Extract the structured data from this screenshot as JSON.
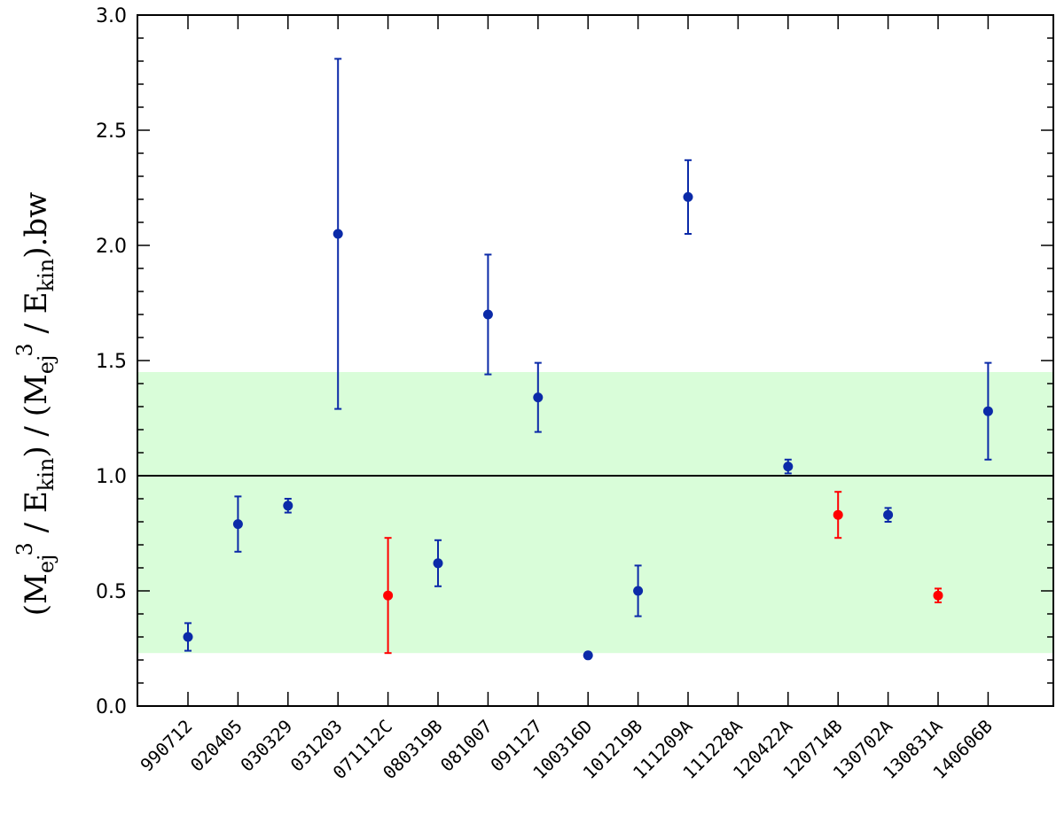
{
  "chart_data": {
    "type": "scatter",
    "title": "",
    "xlabel": "",
    "ylabel": {
      "p1": "(M",
      "s1": "ej",
      "e1": "3",
      "p2": " / E",
      "s2": "kin",
      "p3": ") / (M",
      "s3": "ej",
      "e2": "3",
      "p4": " / E",
      "s4": "kin",
      "p5": ").bw"
    },
    "ylim": [
      0,
      3
    ],
    "yticks": [
      "0.0",
      "0.5",
      "1.0",
      "1.5",
      "2.0",
      "2.5",
      "3.0"
    ],
    "categories": [
      "990712",
      "020405",
      "030329",
      "031203",
      "071112C",
      "080319B",
      "081007",
      "091127",
      "100316D",
      "101219B",
      "111209A",
      "111228A",
      "120422A",
      "120714B",
      "130702A",
      "130831A",
      "140606B"
    ],
    "reference_line": 1.0,
    "band": {
      "low": 0.23,
      "high": 1.45,
      "color": "#d9fdd9"
    },
    "colors": {
      "blue": "#0b2aa8",
      "red": "#ff0000",
      "axis": "#000000"
    },
    "series": [
      {
        "color": "blue",
        "points": [
          {
            "x": "990712",
            "y": 0.3,
            "low": 0.24,
            "high": 0.36
          },
          {
            "x": "020405",
            "y": 0.79,
            "low": 0.67,
            "high": 0.91
          },
          {
            "x": "030329",
            "y": 0.87,
            "low": 0.84,
            "high": 0.9
          },
          {
            "x": "031203",
            "y": 2.05,
            "low": 1.29,
            "high": 2.81
          },
          {
            "x": "080319B",
            "y": 0.62,
            "low": 0.52,
            "high": 0.72
          },
          {
            "x": "081007",
            "y": 1.7,
            "low": 1.44,
            "high": 1.96
          },
          {
            "x": "091127",
            "y": 1.34,
            "low": 1.19,
            "high": 1.49
          },
          {
            "x": "100316D",
            "y": 0.22,
            "low": 0.22,
            "high": 0.22
          },
          {
            "x": "101219B",
            "y": 0.5,
            "low": 0.39,
            "high": 0.61
          },
          {
            "x": "111209A",
            "y": 2.21,
            "low": 2.05,
            "high": 2.37
          },
          {
            "x": "120422A",
            "y": 1.04,
            "low": 1.01,
            "high": 1.07
          },
          {
            "x": "130702A",
            "y": 0.83,
            "low": 0.8,
            "high": 0.86
          },
          {
            "x": "140606B",
            "y": 1.28,
            "low": 1.07,
            "high": 1.49
          }
        ]
      },
      {
        "color": "red",
        "points": [
          {
            "x": "071112C",
            "y": 0.48,
            "low": 0.23,
            "high": 0.73
          },
          {
            "x": "120714B",
            "y": 0.83,
            "low": 0.73,
            "high": 0.93
          },
          {
            "x": "130831A",
            "y": 0.48,
            "low": 0.45,
            "high": 0.51
          }
        ]
      }
    ]
  }
}
